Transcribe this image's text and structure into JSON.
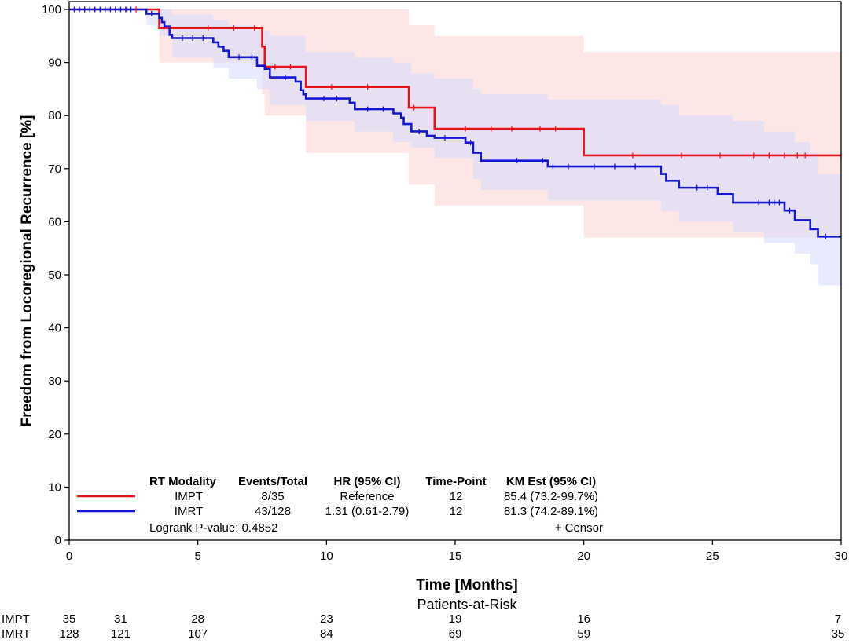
{
  "chart_data": {
    "type": "line",
    "subtype": "kaplan-meier",
    "xlabel": "Time [Months]",
    "ylabel": "Freedom from Locoregional Recurrence [%]",
    "xlim": [
      0,
      30
    ],
    "ylim": [
      0,
      100
    ],
    "xticks": [
      0,
      5,
      10,
      15,
      20,
      25,
      30
    ],
    "yticks": [
      0,
      10,
      20,
      30,
      40,
      50,
      60,
      70,
      80,
      90,
      100
    ],
    "grid": false,
    "series": [
      {
        "name": "IMPT",
        "color": "#e8141b",
        "band_color": "#fcd6d6",
        "steps": [
          [
            0,
            100
          ],
          [
            3.5,
            96.5
          ],
          [
            7.5,
            93.0
          ],
          [
            7.6,
            89.2
          ],
          [
            9.2,
            85.4
          ],
          [
            13.2,
            81.5
          ],
          [
            14.2,
            77.5
          ],
          [
            20.0,
            72.5
          ],
          [
            30.0,
            72.5
          ]
        ],
        "ci_steps": [
          [
            0,
            100,
            100
          ],
          [
            3.5,
            90,
            100
          ],
          [
            7.5,
            84,
            100
          ],
          [
            7.6,
            80,
            100
          ],
          [
            9.2,
            73,
            100
          ],
          [
            13.2,
            67,
            97
          ],
          [
            14.2,
            63,
            95
          ],
          [
            16.8,
            63,
            95
          ],
          [
            20.0,
            57,
            92
          ],
          [
            30.0,
            57,
            92
          ]
        ],
        "censor_times": [
          0.2,
          0.6,
          1.0,
          1.4,
          1.8,
          2.2,
          2.6,
          5.4,
          6.4,
          7.2,
          8.0,
          8.6,
          10.2,
          11.6,
          13.4,
          15.4,
          16.4,
          17.2,
          18.3,
          18.9,
          21.9,
          23.8,
          25.3,
          26.6,
          27.2,
          27.8,
          28.3,
          28.6,
          30.0
        ]
      },
      {
        "name": "IMRT",
        "color": "#1515d4",
        "band_color": "#d8dcfc",
        "steps": [
          [
            0,
            100
          ],
          [
            3.0,
            99.2
          ],
          [
            3.5,
            98.4
          ],
          [
            3.6,
            97.6
          ],
          [
            3.7,
            96.8
          ],
          [
            3.9,
            95.2
          ],
          [
            4.0,
            94.6
          ],
          [
            5.6,
            93.8
          ],
          [
            5.8,
            93.0
          ],
          [
            6.0,
            92.2
          ],
          [
            6.2,
            91.0
          ],
          [
            7.3,
            89.4
          ],
          [
            7.6,
            88.8
          ],
          [
            7.8,
            87.2
          ],
          [
            8.8,
            86.4
          ],
          [
            9.0,
            84.8
          ],
          [
            9.1,
            84.0
          ],
          [
            9.2,
            83.2
          ],
          [
            10.9,
            82.4
          ],
          [
            11.1,
            81.2
          ],
          [
            12.6,
            80.4
          ],
          [
            12.9,
            79.6
          ],
          [
            13.0,
            78.4
          ],
          [
            13.3,
            77.0
          ],
          [
            13.9,
            76.2
          ],
          [
            14.2,
            75.8
          ],
          [
            15.4,
            74.9
          ],
          [
            15.7,
            73.0
          ],
          [
            16.0,
            71.5
          ],
          [
            18.6,
            70.4
          ],
          [
            23.0,
            69.0
          ],
          [
            23.2,
            67.7
          ],
          [
            23.7,
            66.4
          ],
          [
            25.2,
            65.2
          ],
          [
            25.8,
            63.6
          ],
          [
            27.8,
            62.1
          ],
          [
            28.2,
            60.3
          ],
          [
            28.8,
            58.6
          ],
          [
            29.1,
            57.2
          ],
          [
            30.0,
            57.2
          ]
        ],
        "ci_steps": [
          [
            0,
            100,
            100
          ],
          [
            3.0,
            97,
            100
          ],
          [
            3.5,
            95,
            100
          ],
          [
            4.0,
            91,
            99
          ],
          [
            5.6,
            89,
            98
          ],
          [
            6.2,
            87,
            97
          ],
          [
            7.3,
            85,
            96
          ],
          [
            7.8,
            82,
            95
          ],
          [
            9.2,
            79,
            92
          ],
          [
            11.1,
            77,
            91
          ],
          [
            12.6,
            75,
            90
          ],
          [
            13.3,
            74,
            88
          ],
          [
            14.2,
            72,
            87
          ],
          [
            15.7,
            68,
            85
          ],
          [
            16.0,
            66,
            84
          ],
          [
            18.6,
            64,
            83
          ],
          [
            23.0,
            62,
            82
          ],
          [
            23.7,
            60,
            80
          ],
          [
            25.8,
            58,
            79
          ],
          [
            27.0,
            56,
            77
          ],
          [
            28.2,
            54,
            75
          ],
          [
            28.8,
            52,
            73
          ],
          [
            29.1,
            48,
            69
          ],
          [
            30.0,
            48,
            69
          ]
        ],
        "censor_times": [
          0.2,
          0.4,
          0.6,
          0.8,
          1.0,
          1.2,
          1.4,
          1.6,
          1.8,
          2.0,
          2.2,
          2.4,
          3.2,
          4.4,
          4.8,
          5.2,
          6.6,
          7.1,
          8.4,
          9.9,
          10.4,
          11.6,
          12.2,
          13.6,
          14.6,
          15.6,
          17.4,
          18.4,
          18.8,
          19.4,
          20.4,
          21.2,
          22.0,
          24.4,
          24.8,
          26.8,
          27.2,
          27.4,
          27.6,
          28.0,
          29.4
        ]
      }
    ],
    "legend_table": {
      "headers": [
        "RT Modality",
        "Events/Total",
        "HR (95% CI)",
        "Time-Point",
        "KM Est (95% CI)"
      ],
      "rows": [
        [
          "IMPT",
          "8/35",
          "Reference",
          "12",
          "85.4 (73.2-99.7%)"
        ],
        [
          "IMRT",
          "43/128",
          "1.31 (0.61-2.79)",
          "12",
          "81.3 (74.2-89.1%)"
        ]
      ],
      "logrank": "Logrank P-value: 0.4852",
      "censor_label": "+  Censor"
    },
    "at_risk": {
      "title": "Patients-at-Risk",
      "rows": [
        {
          "name": "IMPT",
          "values": [
            [
              "0",
              35
            ],
            [
              "2",
              31
            ],
            [
              "5",
              28
            ],
            [
              "10",
              23
            ],
            [
              "15",
              19
            ],
            [
              "20",
              16
            ],
            [
              "30",
              7
            ]
          ]
        },
        {
          "name": "IMRT",
          "values": [
            [
              "0",
              128
            ],
            [
              "2",
              121
            ],
            [
              "5",
              107
            ],
            [
              "10",
              84
            ],
            [
              "15",
              69
            ],
            [
              "20",
              59
            ],
            [
              "30",
              35
            ]
          ]
        }
      ]
    }
  }
}
